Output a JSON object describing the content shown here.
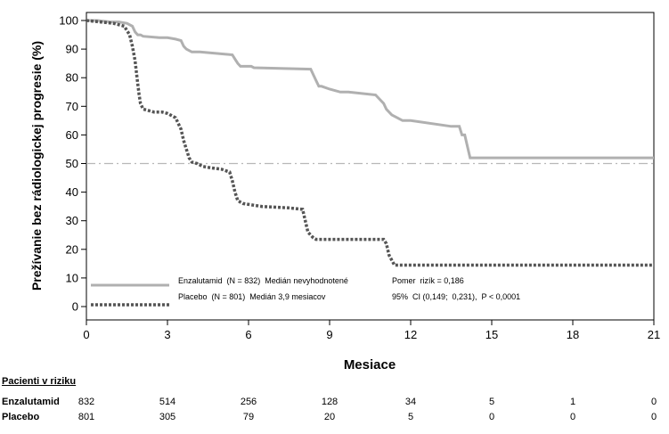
{
  "chart_data": {
    "type": "line",
    "title": "",
    "xlabel": "Mesiace",
    "ylabel": "Prežívanie bez rádiologickej progresie (%)",
    "xlim": [
      0,
      21
    ],
    "ylim": [
      -4,
      101
    ],
    "xticks": [
      0,
      3,
      6,
      9,
      12,
      15,
      18,
      21
    ],
    "yticks": [
      0,
      10,
      20,
      30,
      40,
      50,
      60,
      70,
      80,
      90,
      100
    ],
    "reference_line": 50,
    "grid": false,
    "legend_position": "bottom-left",
    "series": [
      {
        "name": "Enzalutamid",
        "style": "solid",
        "color": "#b0b0b0",
        "legend": "Enzalutamid  (N = 832)  Medián nevyhodnotené",
        "x": [
          0,
          0.4,
          0.9,
          1.2,
          1.5,
          1.7,
          1.8,
          1.9,
          2.0,
          2.1,
          2.7,
          3.0,
          3.3,
          3.5,
          3.6,
          3.7,
          3.9,
          4.2,
          5.4,
          5.5,
          5.6,
          5.7,
          5.8,
          6.1,
          6.2,
          8.3,
          8.4,
          8.5,
          8.6,
          8.7,
          9.0,
          9.4,
          9.7,
          10.7,
          11.0,
          11.1,
          11.3,
          11.5,
          11.7,
          12.0,
          13.5,
          13.8,
          13.9,
          14.0,
          14.2,
          21.0
        ],
        "y": [
          100,
          100,
          99.5,
          99.5,
          99,
          98,
          96,
          95,
          95,
          94.5,
          94,
          94,
          93.5,
          93,
          91,
          90,
          89,
          89,
          88,
          86.5,
          85,
          84,
          84,
          84,
          83.5,
          83,
          81,
          79,
          77,
          77,
          76,
          75,
          75,
          74,
          71,
          69,
          67,
          66,
          65,
          65,
          63,
          63,
          60,
          60,
          52,
          52
        ]
      },
      {
        "name": "Placebo",
        "style": "dotted",
        "color": "#555555",
        "legend": "Placebo  (N = 801)  Medián 3,9 mesiacov",
        "x": [
          0,
          0.5,
          1.0,
          1.4,
          1.6,
          1.7,
          1.8,
          1.85,
          1.9,
          1.95,
          2.0,
          2.1,
          2.3,
          2.5,
          2.8,
          3.0,
          3.3,
          3.5,
          3.6,
          3.7,
          3.8,
          3.9,
          4.1,
          4.3,
          4.6,
          5.0,
          5.3,
          5.4,
          5.5,
          5.6,
          5.8,
          6.5,
          7.5,
          8.0,
          8.1,
          8.2,
          8.4,
          8.5,
          9.0,
          10.0,
          11.0,
          11.1,
          11.2,
          11.4,
          12.0,
          21.0
        ],
        "y": [
          100,
          99.5,
          99,
          98,
          95,
          91,
          86,
          82,
          78,
          74,
          71,
          69,
          68.5,
          68,
          68,
          67.5,
          66,
          62,
          58,
          55,
          52,
          50.5,
          50,
          49,
          48.5,
          48,
          47,
          44,
          40,
          37,
          36,
          35,
          34.5,
          34,
          30,
          26,
          24,
          23.5,
          23.5,
          23.5,
          23.5,
          22,
          18,
          14.5,
          14.5,
          14.5
        ]
      }
    ],
    "annotations": [
      "Pomer  rizík = 0,186",
      "95%  CI (0,149;  0,231),  P < 0,0001"
    ],
    "risk_table": {
      "title": "Pacienti v riziku",
      "times": [
        0,
        3,
        6,
        9,
        12,
        15,
        18,
        21
      ],
      "rows": [
        {
          "label": "Enzalutamid",
          "values": [
            832,
            514,
            256,
            128,
            34,
            5,
            1,
            0
          ]
        },
        {
          "label": "Placebo",
          "values": [
            801,
            305,
            79,
            20,
            5,
            0,
            0,
            0
          ]
        }
      ]
    }
  }
}
